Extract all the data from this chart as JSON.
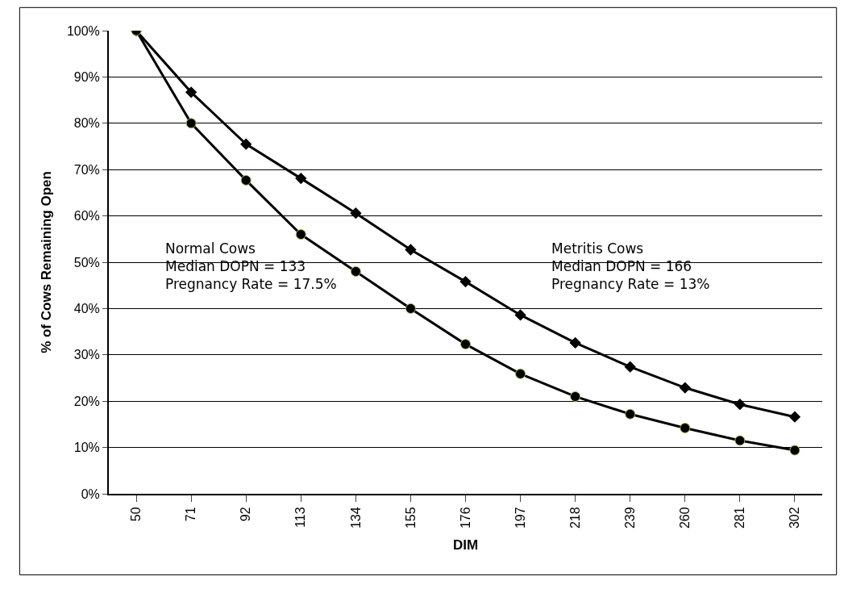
{
  "chart_data": {
    "type": "line",
    "xlabel": "DIM",
    "ylabel": "% of Cows Remaining Open",
    "categories": [
      "50",
      "71",
      "92",
      "113",
      "134",
      "155",
      "176",
      "197",
      "218",
      "239",
      "260",
      "281",
      "302"
    ],
    "series": [
      {
        "color": "#000000",
        "marker": "diamond",
        "values": [
          100,
          86.7,
          75.5,
          68.1,
          60.6,
          52.7,
          45.8,
          38.6,
          32.6,
          27.4,
          22.9,
          19.3,
          16.6
        ]
      },
      {
        "color": "#000000",
        "marker": "circle",
        "values": [
          100,
          80,
          67.7,
          56.0,
          48.0,
          40,
          32.3,
          25.9,
          21.0,
          17.2,
          14.2,
          11.5,
          9.4
        ]
      }
    ],
    "ylim": [
      0,
      100
    ],
    "yticks": [
      {
        "value": 0,
        "label": "0%"
      },
      {
        "value": 10,
        "label": "10%"
      },
      {
        "value": 20,
        "label": "20%"
      },
      {
        "value": 30,
        "label": "30%"
      },
      {
        "value": 40,
        "label": "40%"
      },
      {
        "value": 50,
        "label": "50%"
      },
      {
        "value": 60,
        "label": "60%"
      },
      {
        "value": 70,
        "label": "70%"
      },
      {
        "value": 80,
        "label": "80%"
      },
      {
        "value": 90,
        "label": "90%"
      },
      {
        "value": 100,
        "label": "100%"
      }
    ],
    "grid": "y",
    "line_style": "solid",
    "annotations": [
      "Normal Cows\nMedian DOPN = 133\nPregnancy Rate = 17.5%",
      "Metritis Cows\nMedian DOPN = 166\nPregnancy Rate = 13%"
    ]
  }
}
